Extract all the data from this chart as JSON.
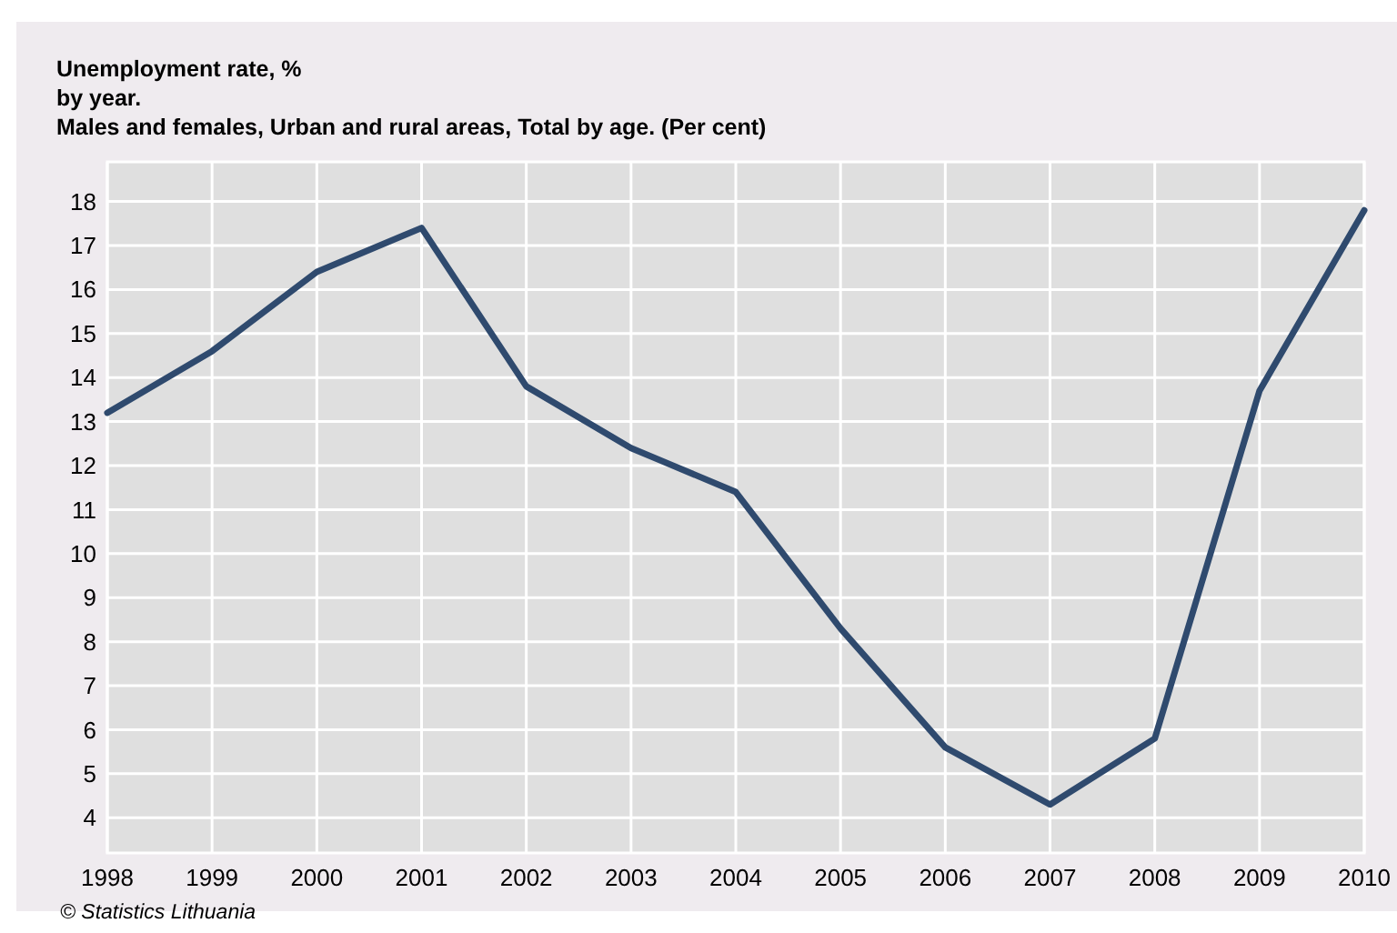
{
  "chart_data": {
    "type": "line",
    "title": "Unemployment rate, %",
    "subtitle": "by year.\nMales and females, Urban and rural areas, Total by age. (Per cent)",
    "x": [
      1998,
      1999,
      2000,
      2001,
      2002,
      2003,
      2004,
      2005,
      2006,
      2007,
      2008,
      2009,
      2010
    ],
    "series": [
      {
        "color": "#2f4a6e",
        "values": [
          13.2,
          14.6,
          16.4,
          17.4,
          13.8,
          12.4,
          11.4,
          8.3,
          5.6,
          4.3,
          5.8,
          13.7,
          17.8
        ]
      }
    ],
    "xlim": [
      1998,
      2010
    ],
    "xticks": [
      1998,
      1999,
      2000,
      2001,
      2002,
      2003,
      2004,
      2005,
      2006,
      2007,
      2008,
      2009,
      2010
    ],
    "ylim": [
      3.2,
      18.9
    ],
    "yticks": [
      4,
      5,
      6,
      7,
      8,
      9,
      10,
      11,
      12,
      13,
      14,
      15,
      16,
      17,
      18
    ],
    "grid": true,
    "marker": "none",
    "line_style": "solid",
    "annotations": [
      "© Statistics Lithuania"
    ]
  }
}
